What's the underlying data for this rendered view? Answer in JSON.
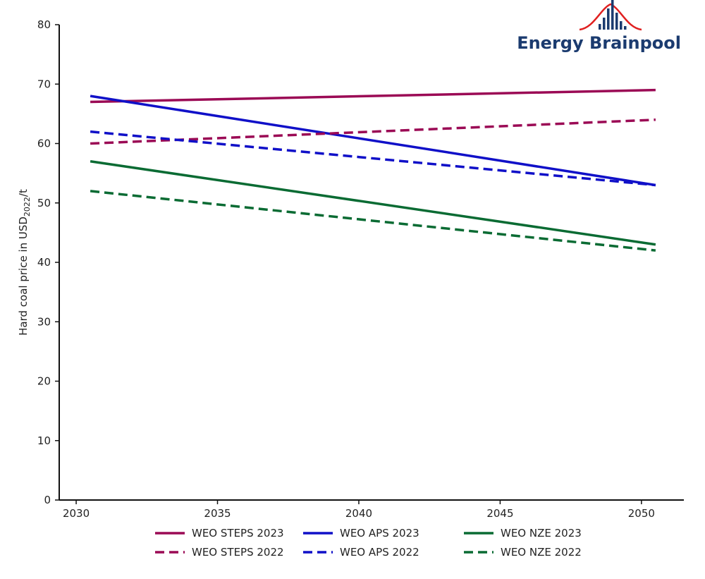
{
  "chart_data": {
    "type": "line",
    "ylabel": {
      "prefix": "Hard coal price in USD",
      "subscript": "2022",
      "suffix": "/t"
    },
    "x_ticks": [
      "2030",
      "2035",
      "2040",
      "2045",
      "2050"
    ],
    "y_ticks": [
      "0",
      "10",
      "20",
      "30",
      "40",
      "50",
      "60",
      "70",
      "80"
    ],
    "xlim": [
      2029.4,
      2051.5
    ],
    "ylim": [
      0,
      80
    ],
    "grid": false,
    "legend_position": "bottom",
    "series": [
      {
        "name": "WEO STEPS 2023",
        "color": "#9b0a55",
        "dash": "solid",
        "x": [
          2030.5,
          2050.5
        ],
        "y": [
          67,
          69
        ]
      },
      {
        "name": "WEO APS 2023",
        "color": "#1010c8",
        "dash": "solid",
        "x": [
          2030.5,
          2050.5
        ],
        "y": [
          68,
          53
        ]
      },
      {
        "name": "WEO NZE 2023",
        "color": "#0a6b33",
        "dash": "solid",
        "x": [
          2030.5,
          2050.5
        ],
        "y": [
          57,
          43
        ]
      },
      {
        "name": "WEO STEPS 2022",
        "color": "#9b0a55",
        "dash": "dashed",
        "x": [
          2030.5,
          2050.5
        ],
        "y": [
          60,
          64
        ]
      },
      {
        "name": "WEO APS 2022",
        "color": "#1010c8",
        "dash": "dashed",
        "x": [
          2030.5,
          2050.5
        ],
        "y": [
          62,
          53
        ]
      },
      {
        "name": "WEO NZE 2022",
        "color": "#0a6b33",
        "dash": "dashed",
        "x": [
          2030.5,
          2050.5
        ],
        "y": [
          52,
          42
        ]
      }
    ]
  },
  "logo": {
    "text": "Energy Brainpool",
    "text_color": "#1b3b6f",
    "arc_color": "#e02020"
  }
}
